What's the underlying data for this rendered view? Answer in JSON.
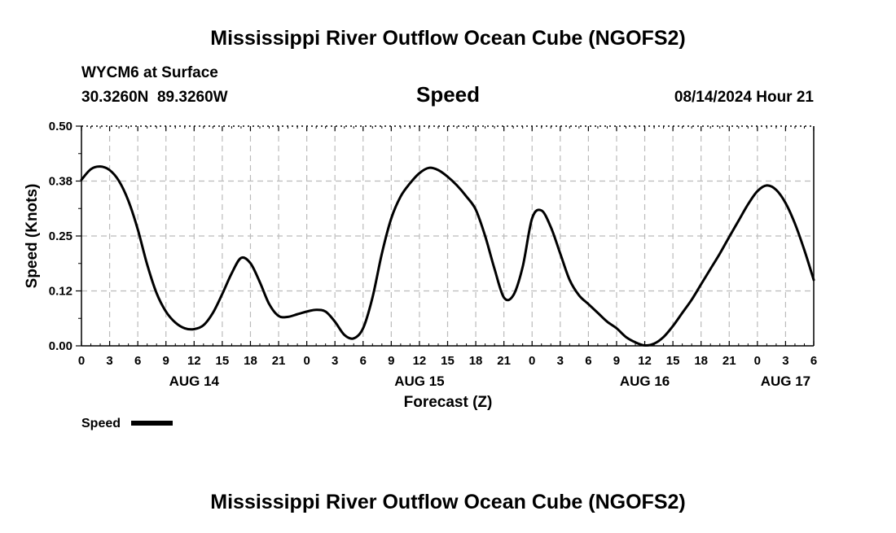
{
  "page": {
    "title": "Mississippi River Outflow Ocean Cube (NGOFS2)",
    "footer_title": "Mississippi River Outflow Ocean Cube (NGOFS2)"
  },
  "header": {
    "station": "WYCM6 at Surface",
    "coordinates": "30.3260N  89.3260W",
    "variable": "Speed",
    "timestamp": "08/14/2024 Hour 21"
  },
  "legend": {
    "label": "Speed"
  },
  "colors": {
    "line": "#000000",
    "grid": "#bbbbbb"
  },
  "chart_data": {
    "type": "line",
    "title": "Speed",
    "xlabel": "Forecast (Z)",
    "ylabel": "Speed (Knots)",
    "xlim": [
      0,
      78
    ],
    "ylim": [
      0,
      0.5
    ],
    "grid": true,
    "legend_position": "bottom-left",
    "y_ticks": [
      0,
      0.125,
      0.25,
      0.375,
      0.5
    ],
    "y_tick_labels": [
      "0.00",
      "0.12",
      "0.25",
      "0.38",
      "0.50"
    ],
    "x_ticks": [
      0,
      3,
      6,
      9,
      12,
      15,
      18,
      21,
      24,
      27,
      30,
      33,
      36,
      39,
      42,
      45,
      48,
      51,
      54,
      57,
      60,
      63,
      66,
      69,
      72,
      75,
      78
    ],
    "x_tick_labels": [
      "0",
      "3",
      "6",
      "9",
      "12",
      "15",
      "18",
      "21",
      "0",
      "3",
      "6",
      "9",
      "12",
      "15",
      "18",
      "21",
      "0",
      "3",
      "6",
      "9",
      "12",
      "15",
      "18",
      "21",
      "0",
      "3",
      "6"
    ],
    "date_labels": [
      {
        "x": 12,
        "label": "AUG 14"
      },
      {
        "x": 36,
        "label": "AUG 15"
      },
      {
        "x": 60,
        "label": "AUG 16"
      },
      {
        "x": 75,
        "label": "AUG 17"
      }
    ],
    "series": [
      {
        "name": "Speed",
        "x": [
          0,
          1,
          2,
          3,
          4,
          5,
          6,
          7,
          8,
          9,
          10,
          11,
          12,
          13,
          14,
          15,
          16,
          17,
          18,
          19,
          20,
          21,
          22,
          23,
          24,
          25,
          26,
          27,
          28,
          29,
          30,
          31,
          32,
          33,
          34,
          35,
          36,
          37,
          38,
          39,
          40,
          41,
          42,
          43,
          44,
          45,
          46,
          47,
          48,
          49,
          50,
          51,
          52,
          53,
          54,
          55,
          56,
          57,
          58,
          59,
          60,
          61,
          62,
          63,
          64,
          65,
          66,
          67,
          68,
          69,
          70,
          71,
          72,
          73,
          74,
          75,
          76,
          77,
          78
        ],
        "values": [
          0.378,
          0.402,
          0.408,
          0.4,
          0.375,
          0.33,
          0.265,
          0.185,
          0.12,
          0.078,
          0.053,
          0.04,
          0.038,
          0.047,
          0.075,
          0.118,
          0.165,
          0.2,
          0.188,
          0.145,
          0.095,
          0.068,
          0.066,
          0.072,
          0.078,
          0.082,
          0.078,
          0.055,
          0.025,
          0.017,
          0.04,
          0.11,
          0.21,
          0.29,
          0.34,
          0.37,
          0.393,
          0.405,
          0.4,
          0.385,
          0.365,
          0.34,
          0.31,
          0.25,
          0.175,
          0.11,
          0.115,
          0.18,
          0.29,
          0.308,
          0.27,
          0.21,
          0.15,
          0.115,
          0.095,
          0.075,
          0.055,
          0.04,
          0.02,
          0.008,
          0.001,
          0.005,
          0.02,
          0.045,
          0.075,
          0.105,
          0.14,
          0.175,
          0.21,
          0.248,
          0.285,
          0.322,
          0.352,
          0.365,
          0.355,
          0.325,
          0.278,
          0.218,
          0.15
        ]
      }
    ]
  }
}
